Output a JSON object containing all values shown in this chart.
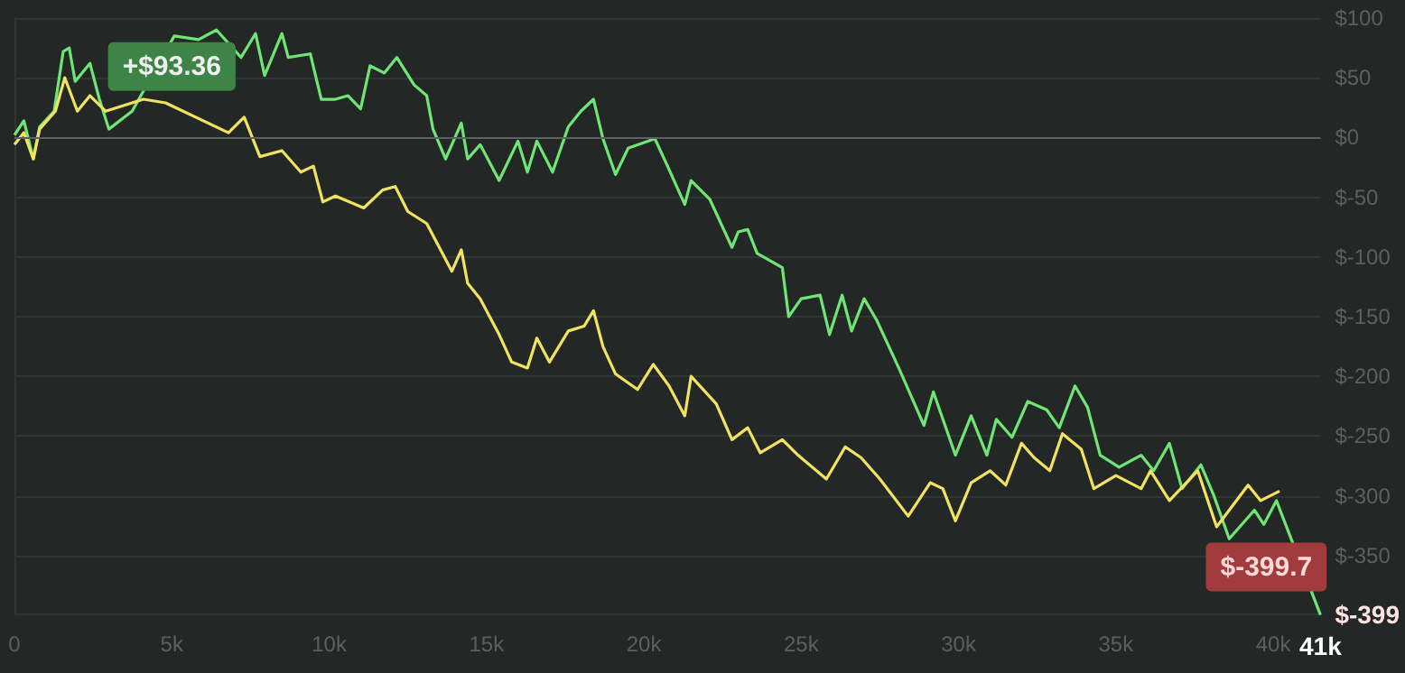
{
  "chart_data": {
    "type": "line",
    "series": [
      {
        "color": "#6ee574",
        "x": [
          0,
          300,
          600,
          800,
          1260,
          1550,
          1740,
          1930,
          2400,
          2700,
          3000,
          3360,
          3740,
          4130,
          4500,
          5080,
          5850,
          6420,
          6700,
          7200,
          7660,
          7950,
          8500,
          8700,
          9400,
          9750,
          10200,
          10600,
          11000,
          11300,
          11750,
          12150,
          12700,
          13100,
          13300,
          13700,
          14200,
          14400,
          14800,
          15400,
          16000,
          16300,
          16600,
          17100,
          17600,
          18000,
          18400,
          18700,
          19100,
          19500,
          20350,
          20700,
          21300,
          21500,
          22100,
          22800,
          23000,
          23300,
          23600,
          24400,
          24600,
          25000,
          25600,
          25900,
          26300,
          26600,
          27000,
          27400,
          28100,
          28900,
          29200,
          29900,
          30400,
          30900,
          31200,
          31700,
          32200,
          32800,
          33200,
          33700,
          34100,
          34500,
          35100,
          35800,
          36200,
          36700,
          37100,
          37700,
          38100,
          38600,
          39400,
          39700,
          40100,
          40600,
          41000,
          41500
        ],
        "values": [
          2,
          14,
          -18,
          9,
          22,
          72,
          75,
          47,
          62,
          32,
          7,
          null,
          22,
          null,
          null,
          85,
          82,
          90,
          null,
          67,
          87,
          52,
          87,
          67,
          70,
          32,
          32,
          35,
          24,
          60,
          54,
          67,
          44,
          35,
          7,
          -18,
          12,
          -18,
          -6,
          -36,
          -3,
          -29,
          -3,
          -29,
          9,
          22,
          32,
          -1,
          -31,
          -9,
          -1,
          -21,
          -56,
          -36,
          -52,
          -92,
          -79,
          -77,
          -97,
          -109,
          -150,
          -135,
          -132,
          -165,
          -132,
          -162,
          -135,
          -153,
          -193,
          -241,
          -213,
          -266,
          -233,
          -266,
          -236,
          -251,
          -221,
          -228,
          -243,
          -208,
          -226,
          -266,
          -276,
          -266,
          -279,
          -256,
          -294,
          -274,
          -299,
          -336,
          -312,
          -324,
          -304,
          null,
          null,
          -399.7
        ]
      },
      {
        "color": "#f1e35f",
        "x": [
          0,
          300,
          600,
          800,
          1300,
          1600,
          2000,
          2400,
          2900,
          3400,
          4100,
          4800,
          5300,
          6300,
          6800,
          7300,
          7800,
          8500,
          9100,
          9500,
          9800,
          10200,
          11100,
          11700,
          12100,
          12500,
          13100,
          13500,
          13900,
          14200,
          14400,
          14800,
          15400,
          15800,
          16300,
          16600,
          17000,
          17600,
          18100,
          18400,
          18700,
          19100,
          19800,
          20300,
          20800,
          21300,
          21500,
          22300,
          22800,
          23300,
          23700,
          24400,
          24900,
          25800,
          26400,
          26900,
          27500,
          28400,
          29100,
          29500,
          29900,
          30400,
          31000,
          31500,
          32000,
          32400,
          32900,
          33300,
          33900,
          34300,
          35000,
          35800,
          36100,
          36700,
          37600,
          38200,
          39200,
          39600,
          40200
        ],
        "values": [
          -6,
          4,
          -18,
          7,
          22,
          50,
          22,
          35,
          22,
          null,
          32,
          29,
          null,
          null,
          4,
          17,
          -16,
          -11,
          -29,
          -24,
          -54,
          -49,
          -59,
          -44,
          -41,
          -62,
          -72,
          -92,
          -112,
          -94,
          -122,
          -135,
          -165,
          -188,
          -193,
          -168,
          -188,
          -162,
          -158,
          -145,
          -175,
          -198,
          -211,
          -190,
          -208,
          -233,
          -200,
          -223,
          -253,
          -243,
          -264,
          -253,
          -266,
          -286,
          -259,
          -268,
          -286,
          -317,
          -289,
          -294,
          -321,
          -289,
          -279,
          -291,
          -256,
          -268,
          -279,
          -248,
          -261,
          -294,
          -283,
          -294,
          -279,
          -304,
          -279,
          -326,
          -291,
          -304,
          -296
        ]
      }
    ],
    "xlim": [
      0,
      41500
    ],
    "xticks": [
      {
        "value": 0,
        "label": "0"
      },
      {
        "value": 5000,
        "label": "5k"
      },
      {
        "value": 10000,
        "label": "10k"
      },
      {
        "value": 15000,
        "label": "15k"
      },
      {
        "value": 20000,
        "label": "20k"
      },
      {
        "value": 25000,
        "label": "25k"
      },
      {
        "value": 30000,
        "label": "30k"
      },
      {
        "value": 35000,
        "label": "35k"
      },
      {
        "value": 40000,
        "label": "40k"
      },
      {
        "value": 41500,
        "label": "41k"
      }
    ],
    "ylim": [
      -400,
      100
    ],
    "yticks": [
      {
        "value": 100,
        "label": "$100"
      },
      {
        "value": 50,
        "label": "$50"
      },
      {
        "value": 0,
        "label": "$0"
      },
      {
        "value": -50,
        "label": "$-50"
      },
      {
        "value": -100,
        "label": "$-100"
      },
      {
        "value": -150,
        "label": "$-150"
      },
      {
        "value": -200,
        "label": "$-200"
      },
      {
        "value": -250,
        "label": "$-250"
      },
      {
        "value": -300,
        "label": "$-300"
      },
      {
        "value": -350,
        "label": "$-350"
      },
      {
        "value": -399,
        "label": "$-399"
      }
    ],
    "grid": "y",
    "ref_lines": [
      {
        "axis": "y",
        "value": 0,
        "color": "#5d605e"
      }
    ],
    "annotations": [
      {
        "text": "+$93.36",
        "x": 5000,
        "y": 93.36
      },
      {
        "text": "$-399.7",
        "x": 41500,
        "y": -399.7
      }
    ]
  }
}
